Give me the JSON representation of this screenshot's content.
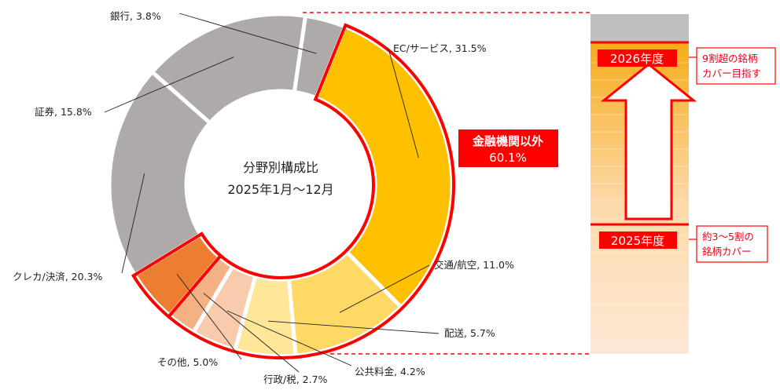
{
  "chart_data": {
    "type": "pie",
    "donut": true,
    "center_title": "分野別構成比",
    "center_subtitle": "2025年1月〜12月",
    "slices": [
      {
        "name": "EC/サービス",
        "value": 31.5,
        "label": "EC/サービス, 31.5%",
        "color": "#ffc000"
      },
      {
        "name": "交通/航空",
        "value": 11.0,
        "label": "交通/航空, 11.0%",
        "color": "#ffd966"
      },
      {
        "name": "配送",
        "value": 5.7,
        "label": "配送, 5.7%",
        "color": "#ffe699"
      },
      {
        "name": "公共料金",
        "value": 4.2,
        "label": "公共料金, 4.2%",
        "color": "#f8cbad"
      },
      {
        "name": "行政/税",
        "value": 2.7,
        "label": "行政/税, 2.7%",
        "color": "#f4b183"
      },
      {
        "name": "その他",
        "value": 5.0,
        "label": "その他, 5.0%",
        "color": "#ed7d31"
      },
      {
        "name": "クレカ/決済",
        "value": 20.3,
        "label": "クレカ/決済, 20.3%",
        "color": "#aeaaaa"
      },
      {
        "name": "証券",
        "value": 15.8,
        "label": "証券, 15.8%",
        "color": "#aeaaaa"
      },
      {
        "name": "銀行",
        "value": 3.8,
        "label": "銀行, 3.8%",
        "color": "#aeaaaa"
      }
    ],
    "highlight": {
      "title": "金融機関以外",
      "value": 60.1,
      "value_label": "60.1%",
      "color": "#ff0000"
    }
  },
  "target_bar": {
    "current_label": "2025年度",
    "target_label": "2026年度",
    "current_note_line1": "約3〜5割の",
    "current_note_line2": "銘柄カバー",
    "target_note_line1": "9割超の銘柄",
    "target_note_line2": "カバー目指す",
    "current_coverage_pct": 40,
    "target_coverage_pct": 90
  },
  "colors": {
    "accent": "#ff0000",
    "grey": "#aeaaaa"
  }
}
